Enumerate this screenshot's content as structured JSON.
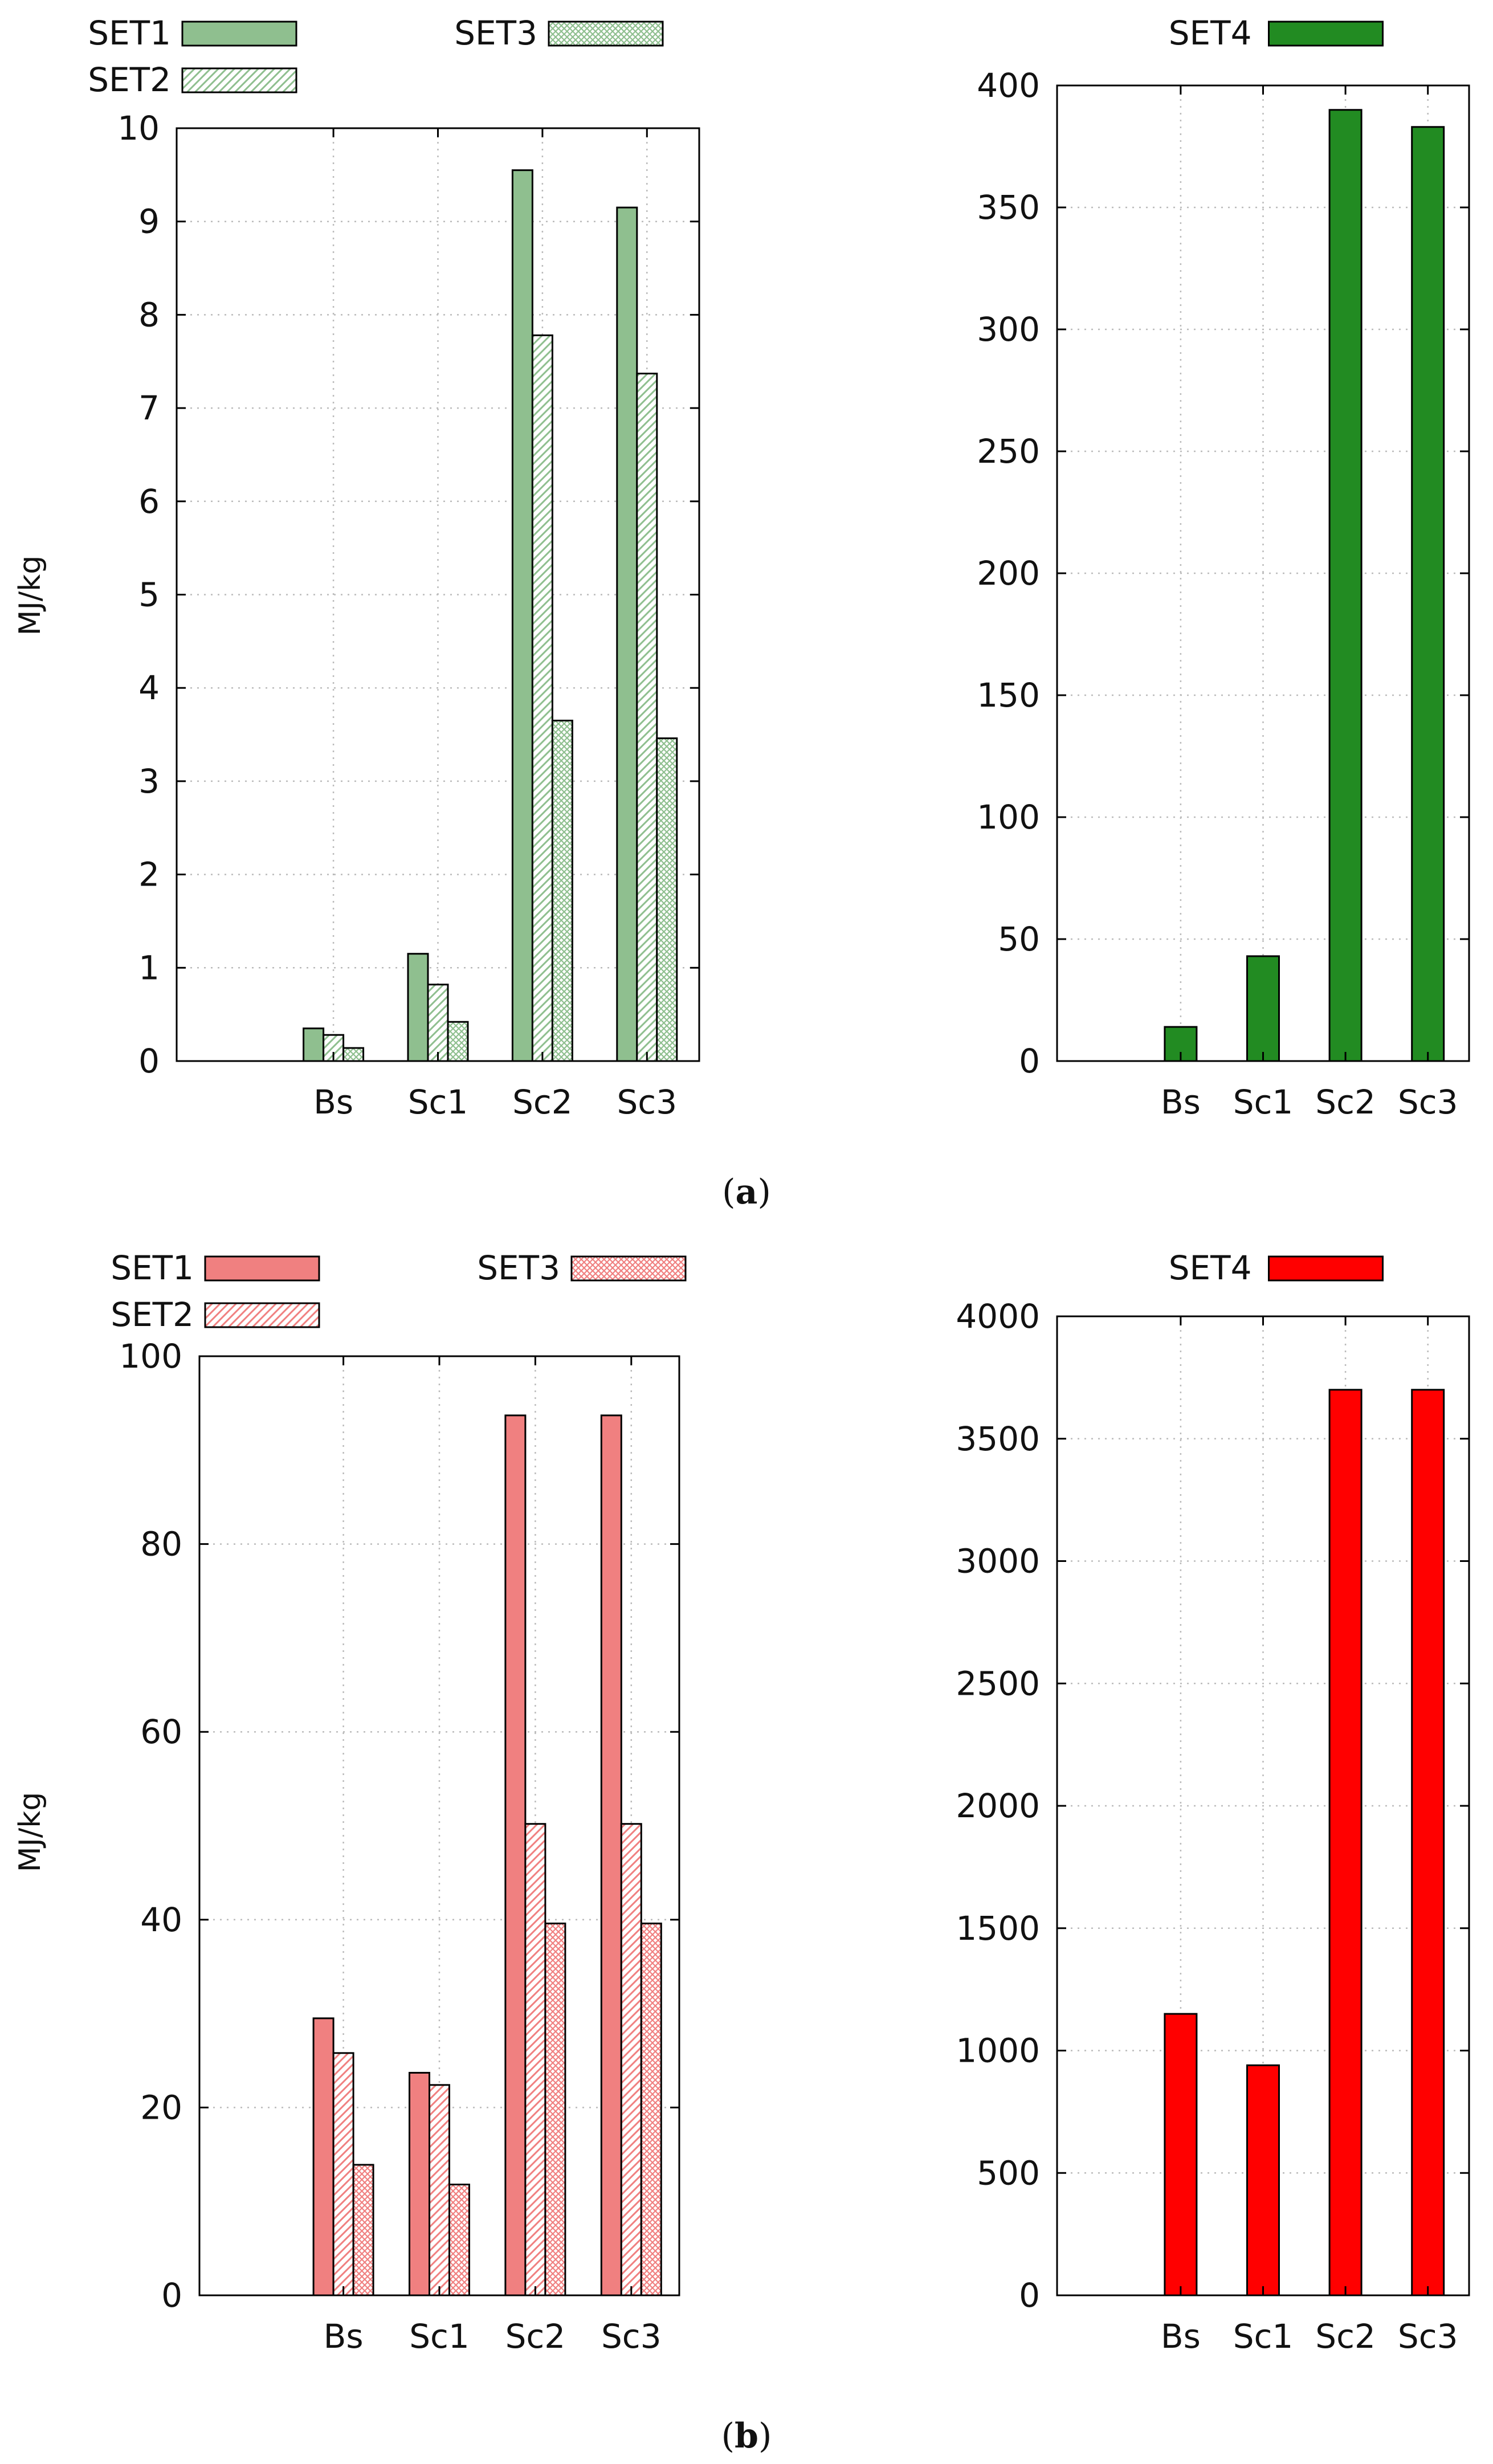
{
  "figure": {
    "panel_a_caption": {
      "paren_open": "(",
      "letter": "a",
      "paren_close": ")"
    },
    "panel_b_caption": {
      "paren_open": "(",
      "letter": "b",
      "paren_close": ")"
    }
  },
  "colors": {
    "green_light": "#8fbf8f",
    "green_dark": "#228b22",
    "red_light": "#f08080",
    "red_dark": "#ff0000",
    "axis": "#000000",
    "grid": "#bbbbbb"
  },
  "chart_data": [
    {
      "id": "a-left",
      "panel": "a",
      "type": "bar",
      "ylabel": "MJ/kg",
      "categories": [
        "Bs",
        "Sc1",
        "Sc2",
        "Sc3"
      ],
      "ylim": [
        0,
        10
      ],
      "yticks": [
        0,
        1,
        2,
        3,
        4,
        5,
        6,
        7,
        8,
        9,
        10
      ],
      "grid": true,
      "legend": "top-left",
      "series": [
        {
          "name": "SET1",
          "pattern": "solid",
          "values": [
            0.35,
            1.15,
            9.55,
            9.15
          ]
        },
        {
          "name": "SET2",
          "pattern": "hatch",
          "values": [
            0.28,
            0.82,
            7.78,
            7.37
          ]
        },
        {
          "name": "SET3",
          "pattern": "cross",
          "values": [
            0.14,
            0.42,
            3.65,
            3.46
          ]
        }
      ]
    },
    {
      "id": "a-right",
      "panel": "a",
      "type": "bar",
      "ylabel": "",
      "categories": [
        "Bs",
        "Sc1",
        "Sc2",
        "Sc3"
      ],
      "ylim": [
        0,
        400
      ],
      "yticks": [
        0,
        50,
        100,
        150,
        200,
        250,
        300,
        350,
        400
      ],
      "grid": true,
      "legend": "top-center",
      "series": [
        {
          "name": "SET4",
          "pattern": "solid",
          "values": [
            14,
            43,
            390,
            383
          ]
        }
      ]
    },
    {
      "id": "b-left",
      "panel": "b",
      "type": "bar",
      "ylabel": "MJ/kg",
      "categories": [
        "Bs",
        "Sc1",
        "Sc2",
        "Sc3"
      ],
      "ylim": [
        0,
        100
      ],
      "yticks": [
        0,
        20,
        40,
        60,
        80,
        100
      ],
      "grid": true,
      "legend": "top-left",
      "series": [
        {
          "name": "SET1",
          "pattern": "solid",
          "values": [
            29.5,
            23.7,
            93.7,
            93.7
          ]
        },
        {
          "name": "SET2",
          "pattern": "hatch",
          "values": [
            25.8,
            22.4,
            50.2,
            50.2
          ]
        },
        {
          "name": "SET3",
          "pattern": "cross",
          "values": [
            13.9,
            11.8,
            39.6,
            39.6
          ]
        }
      ]
    },
    {
      "id": "b-right",
      "panel": "b",
      "type": "bar",
      "ylabel": "",
      "categories": [
        "Bs",
        "Sc1",
        "Sc2",
        "Sc3"
      ],
      "ylim": [
        0,
        4000
      ],
      "yticks": [
        0,
        500,
        1000,
        1500,
        2000,
        2500,
        3000,
        3500,
        4000
      ],
      "grid": true,
      "legend": "top-center",
      "series": [
        {
          "name": "SET4",
          "pattern": "solid",
          "values": [
            1150,
            940,
            3700,
            3700
          ]
        }
      ]
    }
  ]
}
